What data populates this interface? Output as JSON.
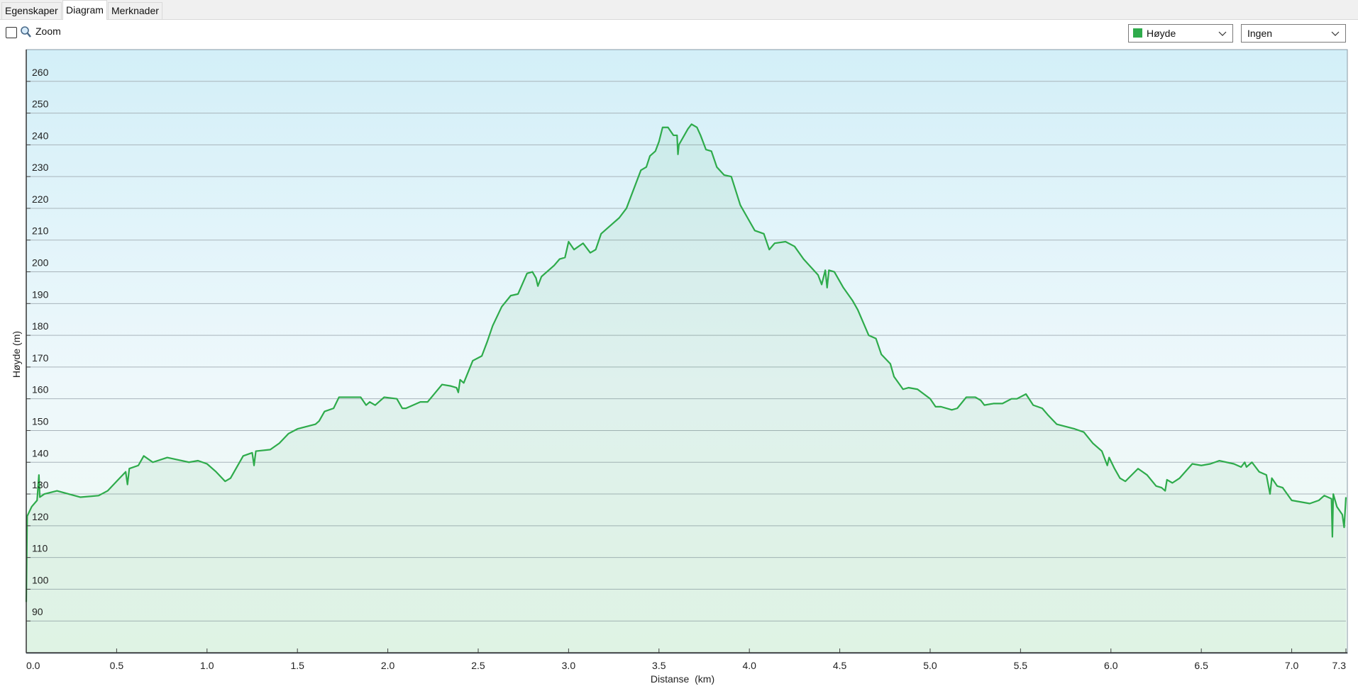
{
  "tabs": [
    "Egenskaper",
    "Diagram",
    "Merknader"
  ],
  "toolbar": {
    "zoom_label": "Zoom",
    "secondary_dropdown": "Ingen"
  },
  "chart_data": {
    "type": "area",
    "x_label": "Distanse  (km)",
    "y_label": "Høyde (m)",
    "xlim": [
      0,
      7.3
    ],
    "ylim": [
      80,
      270
    ],
    "xticks": [
      {
        "value": 0,
        "label": "0.0"
      },
      0.5,
      {
        "value": 1,
        "label": "1.0"
      },
      1.5,
      {
        "value": 2,
        "label": "2.0"
      },
      2.5,
      {
        "value": 3,
        "label": "3.0"
      },
      3.5,
      {
        "value": 4,
        "label": "4.0"
      },
      4.5,
      {
        "value": 5,
        "label": "5.0"
      },
      5.5,
      {
        "value": 6,
        "label": "6.0"
      },
      6.5,
      {
        "value": 7,
        "label": "7.0"
      },
      7.3
    ],
    "yticks": [
      90,
      100,
      110,
      120,
      130,
      140,
      150,
      160,
      170,
      180,
      190,
      200,
      210,
      220,
      230,
      240,
      250,
      260
    ],
    "grid": true,
    "x": [
      0,
      0.005,
      0.03,
      0.06,
      0.07,
      0.075,
      0.1,
      0.17,
      0.3,
      0.4,
      0.45,
      0.5,
      0.55,
      0.56,
      0.57,
      0.62,
      0.65,
      0.7,
      0.78,
      0.9,
      0.95,
      1.0,
      1.05,
      1.1,
      1.13,
      1.2,
      1.25,
      1.26,
      1.27,
      1.35,
      1.4,
      1.45,
      1.5,
      1.6,
      1.62,
      1.65,
      1.7,
      1.73,
      1.85,
      1.88,
      1.9,
      1.93,
      1.98,
      2.05,
      2.08,
      2.1,
      2.18,
      2.22,
      2.3,
      2.35,
      2.38,
      2.39,
      2.4,
      2.42,
      2.47,
      2.52,
      2.55,
      2.58,
      2.63,
      2.68,
      2.72,
      2.77,
      2.8,
      2.82,
      2.83,
      2.85,
      2.92,
      2.95,
      2.98,
      3.0,
      3.03,
      3.08,
      3.12,
      3.15,
      3.18,
      3.22,
      3.28,
      3.32,
      3.36,
      3.4,
      3.43,
      3.45,
      3.48,
      3.5,
      3.52,
      3.55,
      3.58,
      3.6,
      3.605,
      3.61,
      3.66,
      3.68,
      3.71,
      3.73,
      3.76,
      3.79,
      3.82,
      3.86,
      3.9,
      3.95,
      3.99,
      4.03,
      4.08,
      4.11,
      4.14,
      4.2,
      4.25,
      4.3,
      4.38,
      4.4,
      4.42,
      4.43,
      4.44,
      4.47,
      4.52,
      4.57,
      4.6,
      4.63,
      4.66,
      4.7,
      4.73,
      4.78,
      4.8,
      4.85,
      4.88,
      4.93,
      5.0,
      5.03,
      5.06,
      5.12,
      5.15,
      5.2,
      5.25,
      5.28,
      5.3,
      5.35,
      5.4,
      5.45,
      5.48,
      5.53,
      5.57,
      5.62,
      5.65,
      5.7,
      5.8,
      5.85,
      5.9,
      5.95,
      5.98,
      5.99,
      6.02,
      6.05,
      6.08,
      6.15,
      6.2,
      6.25,
      6.28,
      6.3,
      6.31,
      6.34,
      6.38,
      6.45,
      6.5,
      6.55,
      6.6,
      6.68,
      6.72,
      6.74,
      6.75,
      6.78,
      6.82,
      6.86,
      6.88,
      6.89,
      6.92,
      6.95,
      7.0,
      7.05,
      7.1,
      7.15,
      7.18,
      7.2,
      7.22,
      7.225,
      7.23,
      7.25,
      7.28,
      7.29,
      7.3
    ],
    "series": [
      {
        "name": "Høyde",
        "color": "#2eab4b",
        "values": [
          96,
          123,
          126,
          128,
          136,
          129,
          130,
          131,
          129,
          129.5,
          131,
          134,
          137,
          133,
          138,
          139,
          142,
          140,
          141.5,
          140,
          140.5,
          139.5,
          137,
          134,
          135,
          142,
          143,
          139,
          143.5,
          144,
          146,
          149,
          150.5,
          152,
          153,
          156,
          157,
          160.5,
          160.5,
          158,
          159,
          158,
          160.5,
          160,
          157,
          157,
          159,
          159,
          164.5,
          164,
          163.5,
          162,
          166,
          165,
          172,
          173.5,
          178,
          183,
          189,
          192.5,
          193,
          199.5,
          200,
          198,
          195.5,
          198.5,
          202,
          204,
          204.5,
          209.5,
          207,
          209,
          206,
          207,
          212,
          214,
          217,
          220,
          226,
          232,
          233,
          236.5,
          238,
          241,
          245.5,
          245.5,
          243,
          243,
          237,
          240,
          245,
          246.5,
          245.5,
          243,
          238.5,
          238,
          233,
          230.5,
          230,
          221,
          217,
          213,
          212,
          207,
          209,
          209.5,
          208,
          204,
          199,
          196,
          200.5,
          195,
          200.5,
          200,
          195,
          191,
          188,
          184,
          180,
          179,
          174,
          171,
          167,
          163,
          163.5,
          163,
          160,
          157.5,
          157.5,
          156.5,
          157,
          160.5,
          160.5,
          159.5,
          158,
          158.5,
          158.5,
          160,
          160,
          161.5,
          158,
          157,
          155,
          152,
          150.5,
          149.5,
          146,
          143.5,
          139,
          141.5,
          138,
          135,
          134,
          138,
          136,
          132.5,
          132,
          131,
          134.5,
          133.5,
          135,
          139.5,
          139,
          139.5,
          140.5,
          139.5,
          138.5,
          140,
          138.5,
          140,
          137,
          136,
          130,
          135,
          132.5,
          132,
          128,
          127.5,
          127,
          128,
          129.5,
          129,
          128.5,
          116.5,
          130,
          126,
          123.5,
          119.5,
          129
        ]
      }
    ]
  }
}
